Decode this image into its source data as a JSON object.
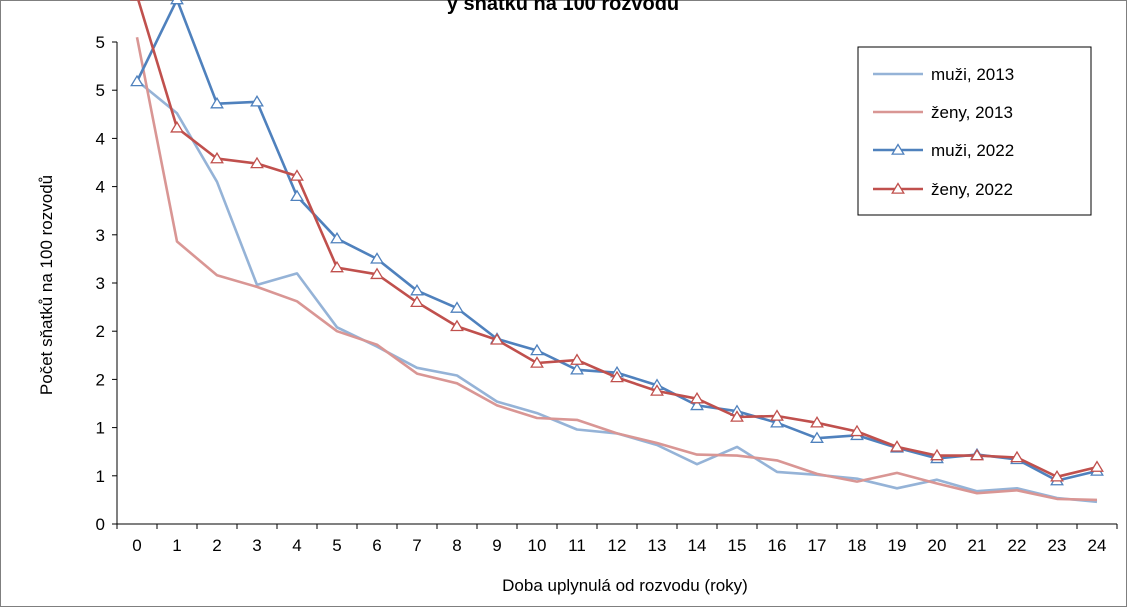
{
  "chart_data": {
    "type": "line",
    "title": "y sňatků na 100 rozvodů",
    "xlabel": "Doba uplynulá od rozvodu (roky)",
    "ylabel": "Počet sňatků na 100 rozvodů",
    "x": [
      0,
      1,
      2,
      3,
      4,
      5,
      6,
      7,
      8,
      9,
      10,
      11,
      12,
      13,
      14,
      15,
      16,
      17,
      18,
      19,
      20,
      21,
      22,
      23,
      24
    ],
    "y_tick_labels": [
      "0",
      "1",
      "1",
      "2",
      "2",
      "3",
      "3",
      "4",
      "4",
      "5",
      "5"
    ],
    "ylim": [
      0,
      5
    ],
    "grid": false,
    "legend_position": "top-right",
    "series": [
      {
        "name": "muži, 2013",
        "color": "#95b3d7",
        "marker": "none",
        "values": [
          4.1,
          3.76,
          3.05,
          1.98,
          2.1,
          1.54,
          1.34,
          1.12,
          1.04,
          0.77,
          0.65,
          0.48,
          0.44,
          0.32,
          0.12,
          0.3,
          0.04,
          0.01,
          -0.03,
          -0.13,
          -0.04,
          -0.16,
          -0.13,
          -0.23,
          -0.27
        ]
      },
      {
        "name": "ženy, 2013",
        "color": "#d99694",
        "marker": "none",
        "values": [
          4.55,
          2.43,
          2.08,
          1.96,
          1.81,
          1.5,
          1.36,
          1.06,
          0.96,
          0.73,
          0.6,
          0.58,
          0.44,
          0.34,
          0.22,
          0.21,
          0.16,
          0.02,
          -0.06,
          0.03,
          -0.08,
          -0.18,
          -0.15,
          -0.24,
          -0.25
        ]
      },
      {
        "name": "muži, 2022",
        "color": "#4f81bd",
        "marker": "triangle",
        "values": [
          4.09,
          4.94,
          3.86,
          3.88,
          2.9,
          2.46,
          2.25,
          1.92,
          1.74,
          1.42,
          1.3,
          1.1,
          1.07,
          0.94,
          0.73,
          0.67,
          0.55,
          0.39,
          0.42,
          0.29,
          0.18,
          0.22,
          0.17,
          -0.05,
          0.05
        ]
      },
      {
        "name": "ženy, 2022",
        "color": "#c0504d",
        "marker": "triangle",
        "values": [
          4.98,
          3.61,
          3.29,
          3.24,
          3.11,
          2.16,
          2.09,
          1.8,
          1.55,
          1.41,
          1.17,
          1.2,
          1.02,
          0.88,
          0.8,
          0.61,
          0.62,
          0.55,
          0.46,
          0.3,
          0.21,
          0.21,
          0.19,
          -0.01,
          0.09
        ]
      }
    ]
  }
}
